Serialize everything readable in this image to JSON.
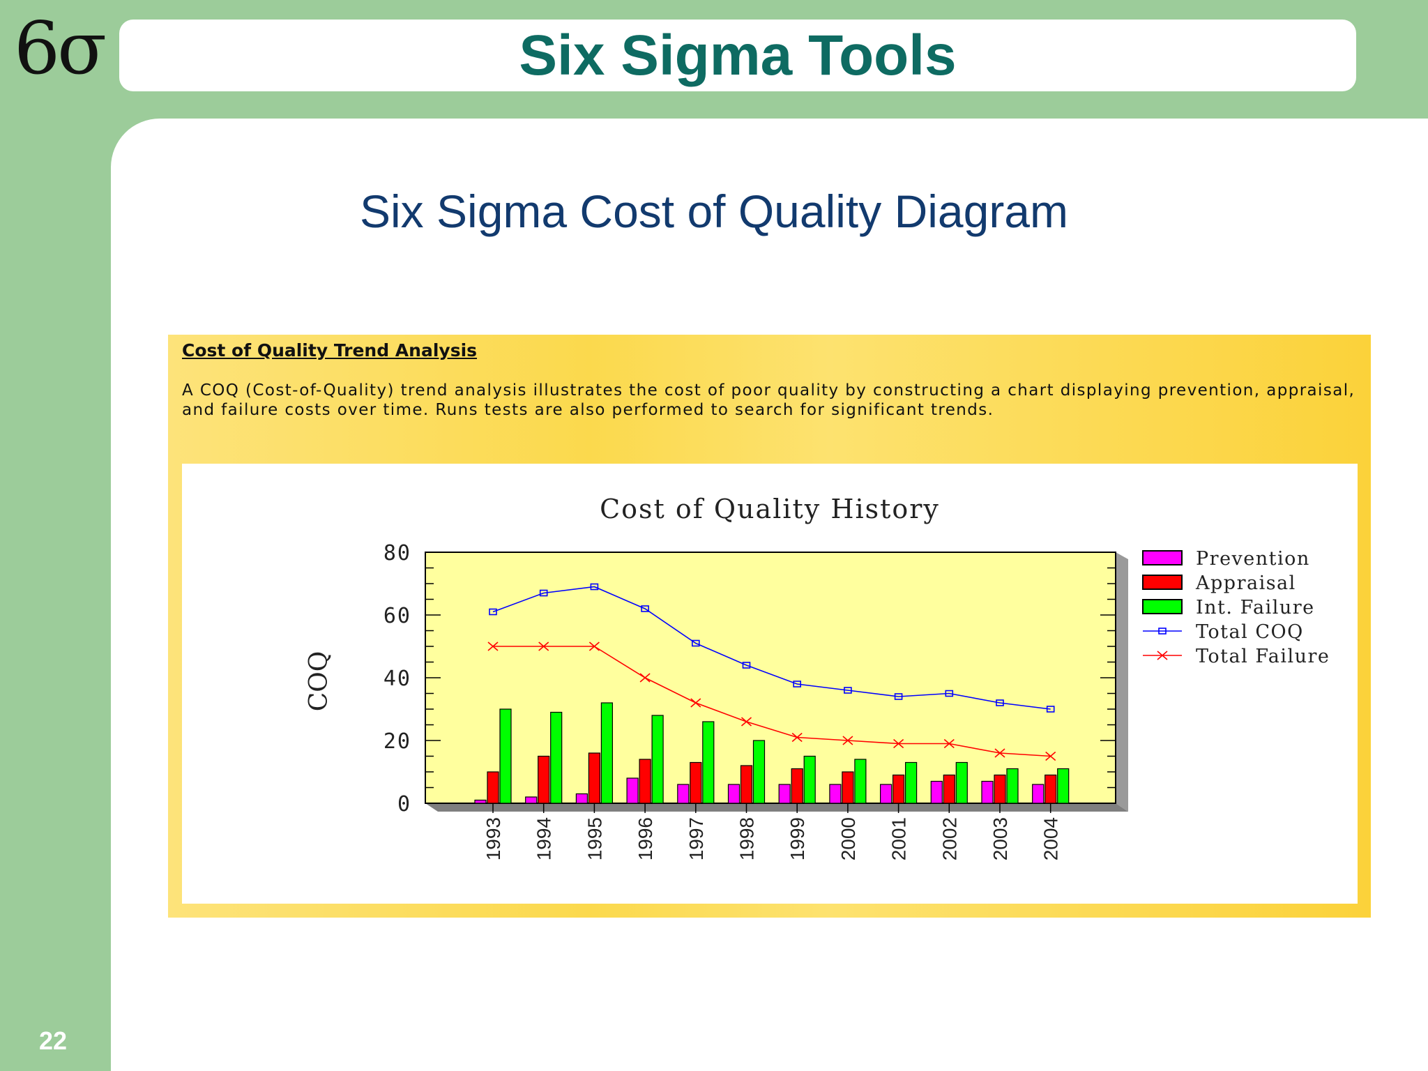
{
  "logo": {
    "text": "6σ"
  },
  "header": {
    "title": "Six Sigma Tools"
  },
  "slide": {
    "subtitle": "Six Sigma Cost of Quality Diagram",
    "page_number": "22"
  },
  "analysis": {
    "heading": "Cost of Quality Trend Analysis",
    "body": "A COQ (Cost-of-Quality) trend analysis illustrates the cost of poor quality by constructing a chart displaying prevention, appraisal, and failure costs over time. Runs tests are also performed to search for significant trends."
  },
  "colors": {
    "header_title": "#0e6b62",
    "subtitle": "#123a6e",
    "plot_background": "#ffff9e",
    "prevention": "#ff00ff",
    "appraisal": "#ff0000",
    "int_failure": "#00ff00",
    "total_coq": "#0000ff",
    "total_failure": "#ff0000"
  },
  "chart_data": {
    "type": "bar",
    "title": "Cost of Quality History",
    "xlabel": "",
    "ylabel": "COQ",
    "ylim": [
      0,
      80
    ],
    "yticks": [
      0,
      20,
      40,
      60,
      80
    ],
    "grid": false,
    "legend_placement": "right",
    "categories": [
      "1993",
      "1994",
      "1995",
      "1996",
      "1997",
      "1998",
      "1999",
      "2000",
      "2001",
      "2002",
      "2003",
      "2004"
    ],
    "series": [
      {
        "name": "Prevention",
        "kind": "bar",
        "color": "#ff00ff",
        "values": [
          1,
          2,
          3,
          8,
          6,
          6,
          6,
          6,
          6,
          7,
          7,
          6
        ]
      },
      {
        "name": "Appraisal",
        "kind": "bar",
        "color": "#ff0000",
        "values": [
          10,
          15,
          16,
          14,
          13,
          12,
          11,
          10,
          9,
          9,
          9,
          9
        ]
      },
      {
        "name": "Int. Failure",
        "kind": "bar",
        "color": "#00ff00",
        "values": [
          30,
          29,
          32,
          28,
          26,
          20,
          15,
          14,
          13,
          13,
          11,
          11
        ]
      },
      {
        "name": "Total COQ",
        "kind": "line",
        "marker": "square",
        "color": "#0000ff",
        "values": [
          61,
          67,
          69,
          62,
          51,
          44,
          38,
          36,
          34,
          35,
          32,
          30
        ]
      },
      {
        "name": "Total Failure",
        "kind": "line",
        "marker": "x",
        "color": "#ff0000",
        "values": [
          50,
          50,
          50,
          40,
          32,
          26,
          21,
          20,
          19,
          19,
          16,
          15
        ]
      }
    ]
  }
}
